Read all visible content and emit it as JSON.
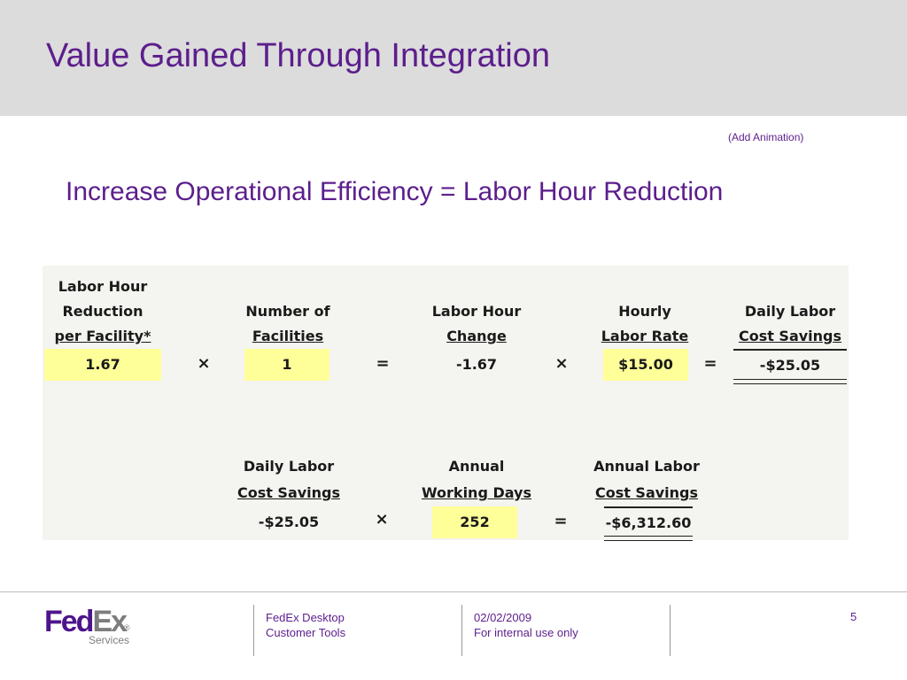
{
  "slide": {
    "title": "Value Gained Through Integration",
    "animation_note": "(Add Animation)",
    "subtitle": "Increase Operational Efficiency = Labor Hour Reduction"
  },
  "calculation": {
    "row1": {
      "labor_hour_reduction": {
        "header": [
          "Labor Hour",
          "Reduction",
          "per Facility*"
        ],
        "value": "1.67"
      },
      "op1": "×",
      "number_of_facilities": {
        "header": [
          "Number of",
          "Facilities"
        ],
        "value": "1"
      },
      "op2": "=",
      "labor_hour_change": {
        "header": [
          "Labor Hour",
          "Change"
        ],
        "value": "-1.67"
      },
      "op3": "×",
      "hourly_labor_rate": {
        "header": [
          "Hourly",
          "Labor Rate"
        ],
        "value": "$15.00"
      },
      "op4": "=",
      "daily_labor_cost_savings": {
        "header": [
          "Daily Labor",
          "Cost Savings"
        ],
        "value": "-$25.05"
      }
    },
    "row2": {
      "daily_labor_cost_savings": {
        "header": [
          "Daily Labor",
          "Cost Savings"
        ],
        "value": "-$25.05"
      },
      "op1": "×",
      "annual_working_days": {
        "header": [
          "Annual",
          "Working Days"
        ],
        "value": "252"
      },
      "op2": "=",
      "annual_labor_cost_savings": {
        "header": [
          "Annual Labor",
          "Cost Savings"
        ],
        "value": "-$6,312.60"
      }
    },
    "highlight_color": "#ffff99"
  },
  "footer": {
    "logo": {
      "brand_fed": "Fed",
      "brand_ex": "Ex",
      "registered": "®",
      "sub": "Services"
    },
    "product_line1": "FedEx Desktop",
    "product_line2": "Customer Tools",
    "date": "02/02/2009",
    "classification": "For internal use only",
    "page_number": "5"
  },
  "colors": {
    "accent_purple": "#5c1e8c",
    "title_band": "#dcdcdc",
    "fedex_purple": "#4d148c",
    "fedex_gray": "#7d7d7d"
  }
}
